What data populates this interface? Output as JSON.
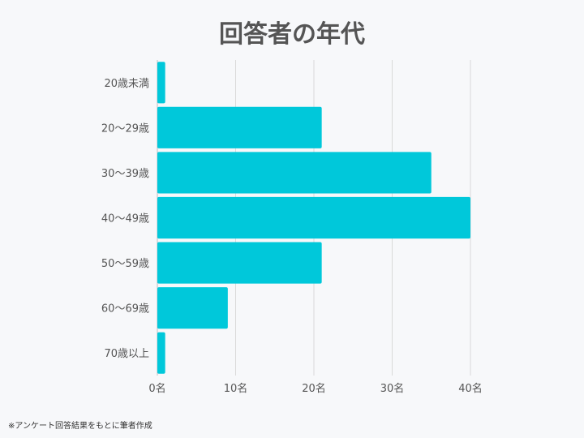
{
  "chart_data": {
    "type": "bar",
    "orientation": "horizontal",
    "title": "回答者の年代",
    "categories": [
      "20歳未満",
      "20～29歳",
      "30～39歳",
      "40～49歳",
      "50～59歳",
      "60～69歳",
      "70歳以上"
    ],
    "values": [
      1,
      21,
      35,
      40,
      21,
      9,
      1
    ],
    "xticks": [
      "0名",
      "10名",
      "20名",
      "30名",
      "40名"
    ],
    "xlim": [
      0,
      40
    ],
    "grid": true,
    "bar_color": "#00c8da",
    "xlabel": "",
    "ylabel": ""
  },
  "footnote": "※アンケート回答結果をもとに筆者作成"
}
